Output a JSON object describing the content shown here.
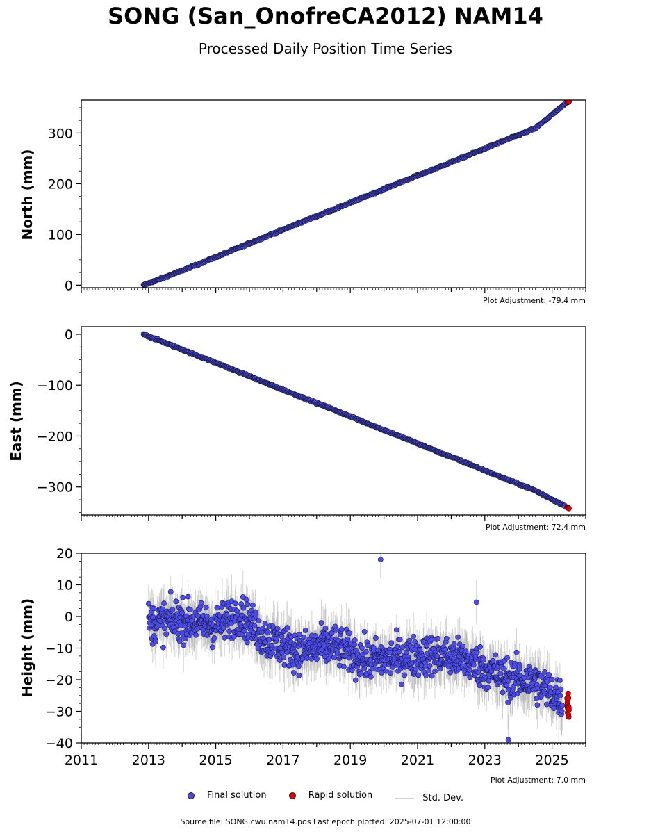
{
  "title": "SONG (San_OnofreCA2012) NAM14",
  "subtitle": "Processed Daily Position Time Series",
  "footer": "Source file: SONG.cwu.nam14.pos  Last epoch plotted: 2025-07-01 12:00:00",
  "legend": {
    "final": "Final solution",
    "rapid": "Rapid solution",
    "std": "Std. Dev."
  },
  "colors": {
    "final": "#4c4cf0",
    "rapid": "#e00000",
    "std": "#9a9a9a"
  },
  "chart_data": [
    {
      "type": "scatter",
      "ylabel": "North (mm)",
      "xlim": [
        2011,
        2026
      ],
      "ylim": [
        -5,
        365
      ],
      "yticks": [
        0,
        100,
        200,
        300
      ],
      "adjustment": "Plot Adjustment: -79.4 mm",
      "series": [
        {
          "name": "Final solution",
          "x": [
            2012.85,
            2013.5,
            2014.5,
            2015.5,
            2016.5,
            2017.5,
            2018.5,
            2019.5,
            2020.5,
            2021.5,
            2022.5,
            2023.5,
            2024.5,
            2025.4
          ],
          "y": [
            0,
            16,
            42,
            69,
            96,
            123,
            149,
            176,
            203,
            229,
            256,
            283,
            309,
            358
          ]
        },
        {
          "name": "Rapid solution",
          "x": [
            2025.45,
            2025.5
          ],
          "y": [
            360,
            362
          ]
        }
      ]
    },
    {
      "type": "scatter",
      "ylabel": "East (mm)",
      "xlim": [
        2011,
        2026
      ],
      "ylim": [
        -355,
        15
      ],
      "yticks": [
        0,
        -100,
        -200,
        -300
      ],
      "adjustment": "Plot Adjustment: 72.4 mm",
      "series": [
        {
          "name": "Final solution",
          "x": [
            2012.85,
            2013.5,
            2014.5,
            2015.5,
            2016.5,
            2017.5,
            2018.5,
            2019.5,
            2020.5,
            2021.5,
            2022.5,
            2023.5,
            2024.5,
            2025.4
          ],
          "y": [
            0,
            -17,
            -43,
            -69,
            -96,
            -122,
            -148,
            -175,
            -201,
            -228,
            -254,
            -281,
            -307,
            -338
          ]
        },
        {
          "name": "Rapid solution",
          "x": [
            2025.45,
            2025.5
          ],
          "y": [
            -340,
            -342
          ]
        }
      ]
    },
    {
      "type": "scatter",
      "ylabel": "Height (mm)",
      "xlim": [
        2011,
        2026
      ],
      "ylim": [
        -40,
        20
      ],
      "yticks": [
        -40,
        -30,
        -20,
        -10,
        0,
        10,
        20
      ],
      "xticks": [
        2011,
        2013,
        2015,
        2017,
        2019,
        2021,
        2023,
        2025
      ],
      "adjustment": "Plot Adjustment: 7.0 mm",
      "series": [
        {
          "name": "Final solution",
          "x": [
            2013,
            2014,
            2015,
            2015.7,
            2016.5,
            2017.5,
            2018.5,
            2019.5,
            2020.5,
            2021.5,
            2022.5,
            2023.5,
            2024.5,
            2025.3
          ],
          "y": [
            -2,
            -1,
            -3,
            1,
            -7,
            -11,
            -9,
            -14,
            -13,
            -12,
            -14,
            -19,
            -21,
            -26
          ]
        },
        {
          "name": "Rapid solution",
          "x": [
            2025.45,
            2025.5
          ],
          "y": [
            -26,
            -30
          ]
        }
      ]
    }
  ]
}
